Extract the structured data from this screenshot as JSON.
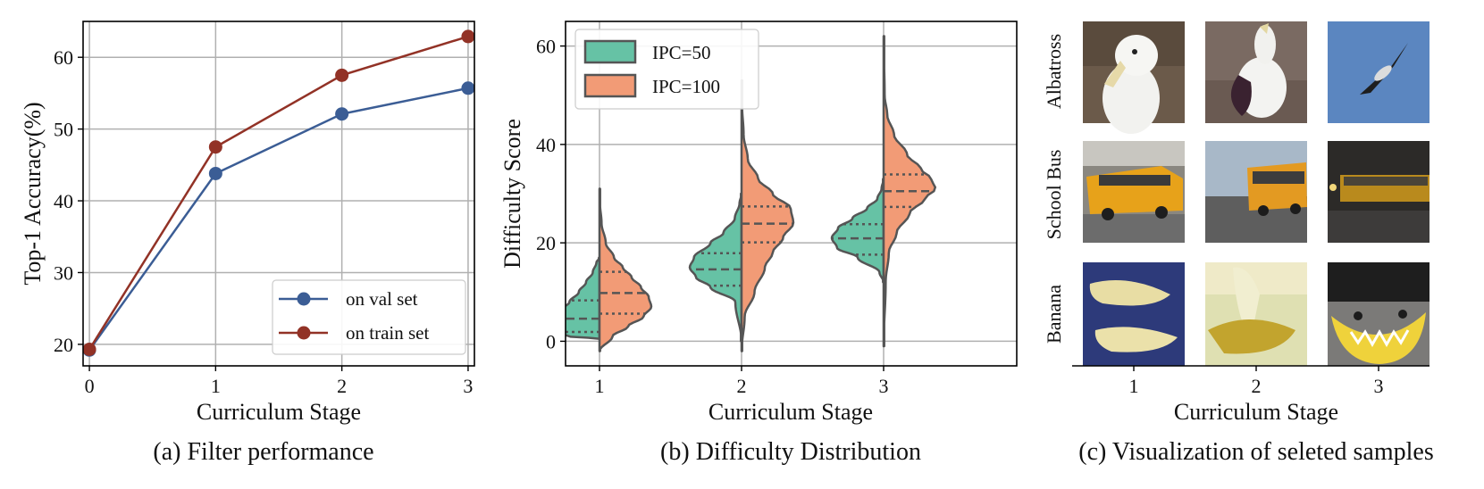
{
  "colors": {
    "val": "#3b5d95",
    "train": "#923226",
    "ipc50": "#66c2a5",
    "ipc100": "#f29b76",
    "outline": "#555555",
    "grid": "#b0b0b0"
  },
  "chart_data": [
    {
      "type": "line",
      "caption": "(a) Filter performance",
      "xlabel": "Curriculum Stage",
      "ylabel": "Top-1 Accuracy(%)",
      "x": [
        0,
        1,
        2,
        3
      ],
      "xlim": [
        -0.05,
        3.05
      ],
      "ylim": [
        17,
        65
      ],
      "xticks": [
        "0",
        "1",
        "2",
        "3"
      ],
      "yticks": [
        "20",
        "30",
        "40",
        "50",
        "60"
      ],
      "grid": true,
      "legend_position": "bottom-right",
      "series": [
        {
          "name": "on val set",
          "values": [
            19.2,
            43.8,
            52.1,
            55.7
          ]
        },
        {
          "name": "on train set",
          "values": [
            19.3,
            47.5,
            57.5,
            62.9
          ]
        }
      ]
    },
    {
      "type": "violin",
      "caption": "(b) Difficulty Distribution",
      "xlabel": "Curriculum Stage",
      "ylabel": "Difficulty Score",
      "categories": [
        "1",
        "2",
        "3"
      ],
      "ylim": [
        -5,
        65
      ],
      "yticks": [
        "0",
        "20",
        "40",
        "60"
      ],
      "grid": true,
      "legend_position": "top-left",
      "series": [
        {
          "name": "IPC=50",
          "side": "left",
          "stages": [
            {
              "profile": [
                [
                  1,
                  0.6
                ],
                [
                  2,
                  1.0
                ],
                [
                  4,
                  0.95
                ],
                [
                  6,
                  0.8
                ],
                [
                  8,
                  0.58
                ],
                [
                  10,
                  0.4
                ],
                [
                  12,
                  0.26
                ],
                [
                  14,
                  0.13
                ],
                [
                  16,
                  0.06
                ]
              ],
              "min": 0.5,
              "max": 17,
              "q1": 1.9,
              "median": 4.6,
              "q3": 8.3
            },
            {
              "profile": [
                [
                  8,
                  0.12
                ],
                [
                  11,
                  0.6
                ],
                [
                  13,
                  0.88
                ],
                [
                  15,
                  1.0
                ],
                [
                  17,
                  0.92
                ],
                [
                  20,
                  0.6
                ],
                [
                  22,
                  0.35
                ],
                [
                  25,
                  0.13
                ],
                [
                  28,
                  0.04
                ]
              ],
              "min": 0,
              "max": 30,
              "q1": 11.3,
              "median": 14.6,
              "q3": 17.9
            },
            {
              "profile": [
                [
                  14,
                  0.08
                ],
                [
                  17,
                  0.5
                ],
                [
                  19,
                  0.9
                ],
                [
                  21,
                  1.0
                ],
                [
                  23,
                  0.88
                ],
                [
                  25,
                  0.6
                ],
                [
                  27,
                  0.32
                ],
                [
                  29,
                  0.12
                ],
                [
                  31,
                  0.04
                ]
              ],
              "min": 12,
              "max": 33,
              "q1": 17.6,
              "median": 20.9,
              "q3": 23.8
            }
          ]
        },
        {
          "name": "IPC=100",
          "side": "right",
          "stages": [
            {
              "profile": [
                [
                  1,
                  0.25
                ],
                [
                  3,
                  0.55
                ],
                [
                  5,
                  0.85
                ],
                [
                  7,
                  1.0
                ],
                [
                  9,
                  0.95
                ],
                [
                  11,
                  0.8
                ],
                [
                  13,
                  0.62
                ],
                [
                  15,
                  0.45
                ],
                [
                  17,
                  0.28
                ],
                [
                  20,
                  0.12
                ],
                [
                  24,
                  0.04
                ],
                [
                  28,
                  0.01
                ]
              ],
              "min": -2,
              "max": 31,
              "q1": 5.6,
              "median": 9.8,
              "q3": 14.1
            },
            {
              "profile": [
                [
                  5,
                  0.06
                ],
                [
                  10,
                  0.25
                ],
                [
                  15,
                  0.45
                ],
                [
                  18,
                  0.6
                ],
                [
                  21,
                  0.8
                ],
                [
                  24,
                  1.0
                ],
                [
                  27,
                  0.95
                ],
                [
                  30,
                  0.6
                ],
                [
                  33,
                  0.32
                ],
                [
                  37,
                  0.12
                ],
                [
                  42,
                  0.04
                ],
                [
                  48,
                  0.01
                ]
              ],
              "min": -2,
              "max": 53,
              "q1": 20.1,
              "median": 23.9,
              "q3": 27.4
            },
            {
              "profile": [
                [
                  12,
                  0.04
                ],
                [
                  18,
                  0.1
                ],
                [
                  22,
                  0.25
                ],
                [
                  26,
                  0.5
                ],
                [
                  29,
                  0.8
                ],
                [
                  31,
                  1.0
                ],
                [
                  33,
                  0.92
                ],
                [
                  35,
                  0.72
                ],
                [
                  38,
                  0.45
                ],
                [
                  42,
                  0.2
                ],
                [
                  46,
                  0.07
                ],
                [
                  50,
                  0.02
                ]
              ],
              "min": -1,
              "max": 62,
              "q1": 27.3,
              "median": 30.5,
              "q3": 33.9
            }
          ]
        }
      ]
    }
  ],
  "panel_c": {
    "caption": "(c) Visualization of seleted samples",
    "xlabel": "Curriculum Stage",
    "stages": [
      "1",
      "2",
      "3"
    ],
    "rows": [
      {
        "label": "Albatross"
      },
      {
        "label": "School Bus"
      },
      {
        "label": "Banana"
      }
    ]
  }
}
